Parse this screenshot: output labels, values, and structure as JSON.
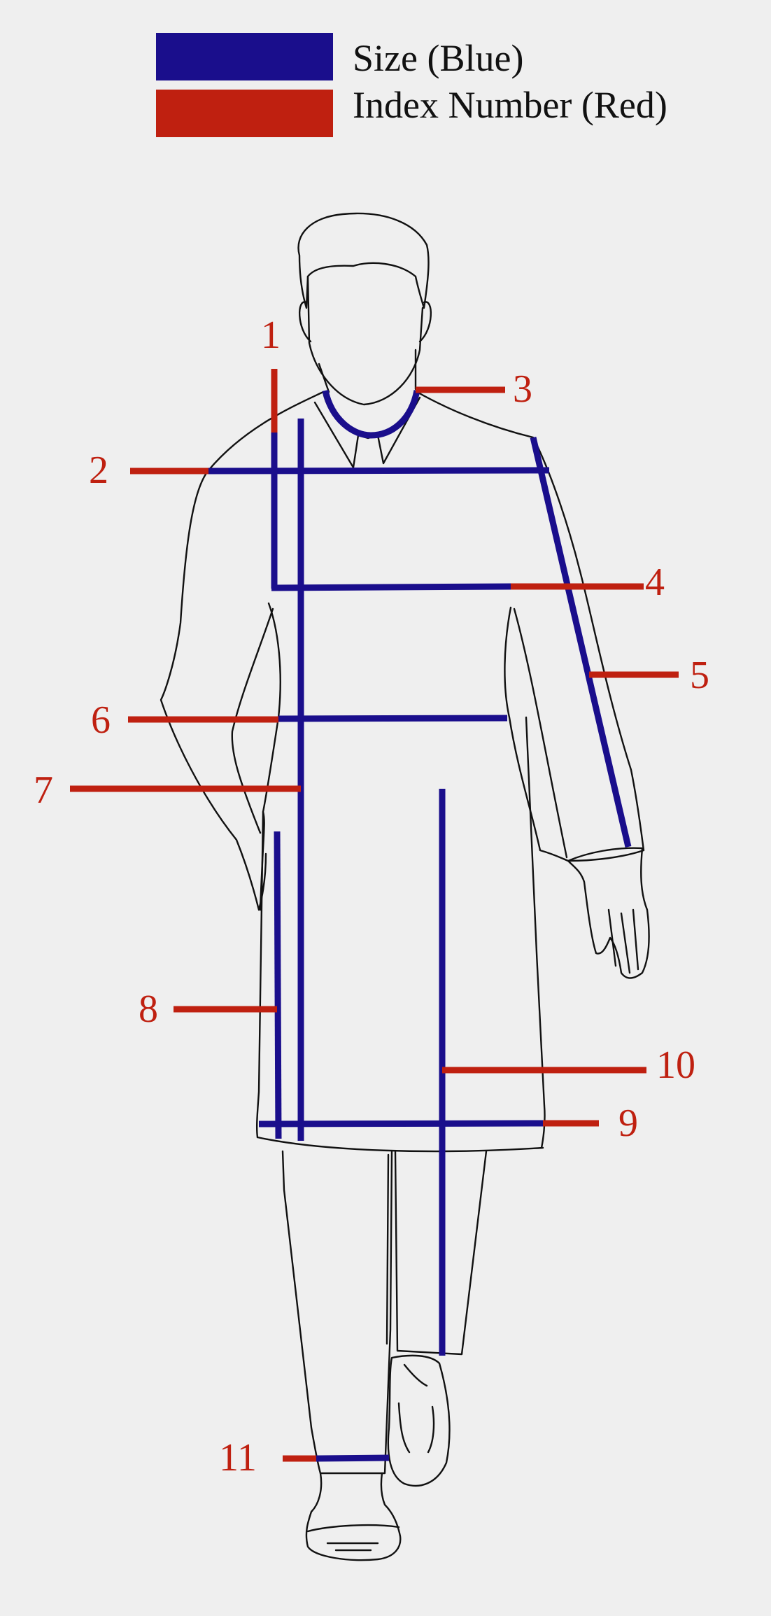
{
  "legend": {
    "size_label": "Size (Blue)",
    "index_label": "Index Number (Red)",
    "size_color": "#1a0e8c",
    "index_color": "#bf2010"
  },
  "indices": [
    "1",
    "2",
    "3",
    "4",
    "5",
    "6",
    "7",
    "8",
    "9",
    "10",
    "11"
  ]
}
